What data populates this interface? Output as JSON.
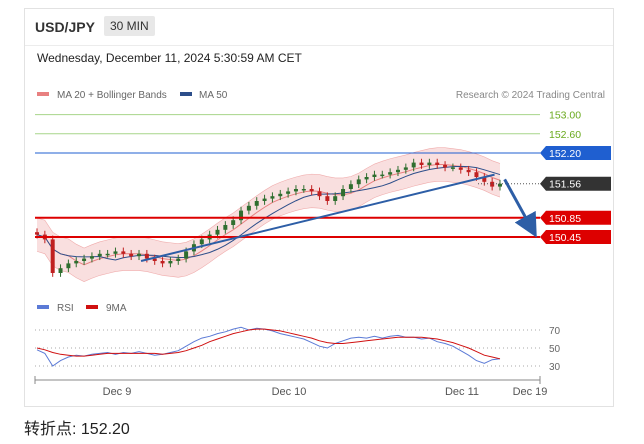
{
  "header": {
    "pair": "USD/JPY",
    "timeframe": "30 MIN"
  },
  "timestamp": "Wednesday, December 11, 2024 5:30:59 AM CET",
  "footer": {
    "turning_point": "转折点: 152.20"
  },
  "colors": {
    "support": "#dd0000",
    "pivot": "#1f5fd0",
    "target": "#6aaa1e",
    "current": "#333333",
    "ma20": "#e88080",
    "bollinger_fill": "#f8d7d7",
    "ma50": "#2d4e8a",
    "candle_up": "#2f6e2f",
    "candle_down": "#c02020",
    "rsi": "#5b7ad6",
    "rsi_ma": "#d01010",
    "trend": "#2d5ea6"
  },
  "chart_data": [
    {
      "type": "candlestick",
      "legend": [
        "MA 20 + Bollinger Bands",
        "MA 50"
      ],
      "legend_placement": "top-left",
      "copyright": "Research © 2024 Trading Central",
      "x_ticks": [
        "Dec 9",
        "Dec 10",
        "Dec 11",
        "Dec 19"
      ],
      "levels": [
        {
          "value": 153.0,
          "label": "153.00",
          "kind": "target"
        },
        {
          "value": 152.6,
          "label": "152.60",
          "kind": "target"
        },
        {
          "value": 152.2,
          "label": "152.20",
          "kind": "pivot"
        },
        {
          "value": 151.56,
          "label": "151.56",
          "kind": "current"
        },
        {
          "value": 150.85,
          "label": "150.85",
          "kind": "support"
        },
        {
          "value": 150.45,
          "label": "150.45",
          "kind": "support"
        }
      ],
      "closes": [
        150.5,
        150.4,
        149.7,
        149.8,
        149.9,
        149.95,
        150.0,
        150.05,
        150.1,
        150.1,
        150.15,
        150.1,
        150.05,
        150.1,
        150.0,
        149.95,
        149.9,
        149.95,
        150.0,
        150.15,
        150.3,
        150.4,
        150.5,
        150.6,
        150.7,
        150.8,
        151.0,
        151.1,
        151.2,
        151.25,
        151.3,
        151.35,
        151.4,
        151.45,
        151.45,
        151.4,
        151.3,
        151.2,
        151.3,
        151.45,
        151.55,
        151.65,
        151.7,
        151.75,
        151.75,
        151.8,
        151.85,
        151.9,
        152.0,
        151.95,
        152.0,
        151.95,
        151.9,
        151.9,
        151.85,
        151.8,
        151.7,
        151.6,
        151.5,
        151.56
      ],
      "trendlines": [
        {
          "from": [
            0.21,
            149.95
          ],
          "to": [
            0.91,
            151.75
          ]
        },
        {
          "from": [
            0.93,
            151.65
          ],
          "to": [
            0.985,
            150.6
          ],
          "arrow": true
        }
      ]
    },
    {
      "type": "line",
      "legend": [
        "RSI",
        "9MA"
      ],
      "legend_placement": "top-left",
      "ylim": [
        20,
        80
      ],
      "y_ticks": [
        70,
        50,
        30
      ],
      "rsi": [
        48,
        44,
        30,
        36,
        40,
        42,
        41,
        43,
        44,
        45,
        43,
        45,
        44,
        46,
        44,
        42,
        43,
        45,
        47,
        52,
        57,
        61,
        63,
        66,
        68,
        71,
        73,
        70,
        72,
        71,
        69,
        66,
        64,
        62,
        60,
        56,
        52,
        50,
        55,
        58,
        61,
        62,
        61,
        63,
        61,
        63,
        64,
        62,
        62,
        60,
        61,
        57,
        55,
        52,
        47,
        42,
        36,
        33,
        37,
        38
      ],
      "rsi_ma": [
        50,
        48,
        45,
        43,
        42,
        41,
        41,
        42,
        43,
        44,
        44,
        44,
        44,
        44,
        44,
        44,
        43,
        44,
        45,
        47,
        50,
        53,
        57,
        60,
        63,
        66,
        68,
        70,
        71,
        71,
        70,
        69,
        67,
        65,
        63,
        61,
        58,
        56,
        55,
        55,
        56,
        57,
        58,
        59,
        60,
        61,
        62,
        62,
        62,
        62,
        61,
        60,
        58,
        56,
        53,
        50,
        46,
        42,
        40,
        38
      ]
    }
  ]
}
